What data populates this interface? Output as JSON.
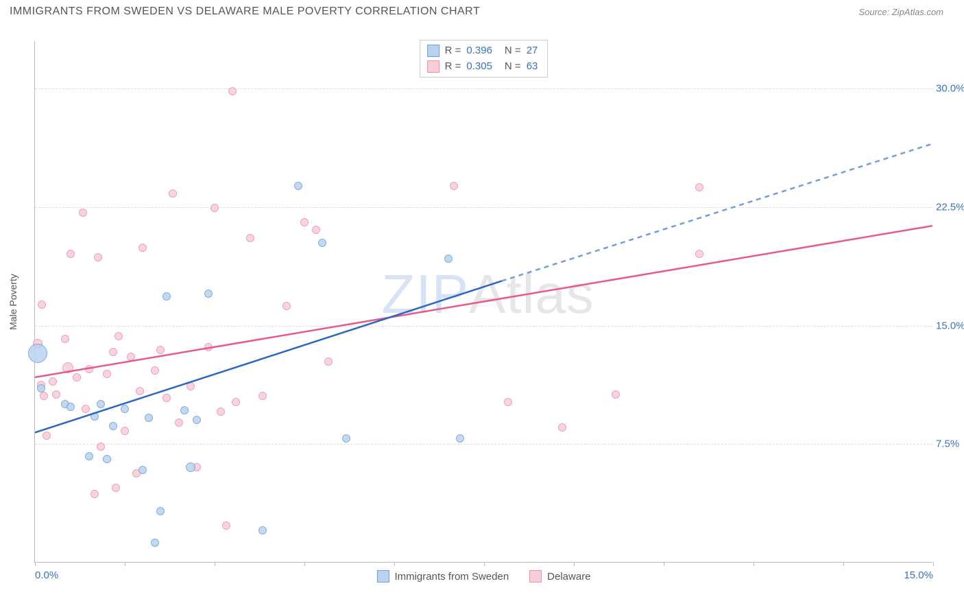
{
  "title": "IMMIGRANTS FROM SWEDEN VS DELAWARE MALE POVERTY CORRELATION CHART",
  "source": "Source: ZipAtlas.com",
  "watermark_part1": "ZIP",
  "watermark_part2": "Atlas",
  "chart": {
    "type": "scatter",
    "ylabel": "Male Poverty",
    "xlim": [
      0,
      15
    ],
    "ylim": [
      0,
      33
    ],
    "y_gridlines": [
      7.5,
      15.0,
      22.5,
      30.0
    ],
    "y_tick_labels": [
      "7.5%",
      "15.0%",
      "22.5%",
      "30.0%"
    ],
    "x_ticks": [
      0,
      1.5,
      3,
      4.5,
      6,
      7.5,
      9,
      10.5,
      12,
      13.5,
      15
    ],
    "x_tick_labels_shown": {
      "0": "0.0%",
      "15": "15.0%"
    },
    "background_color": "#ffffff",
    "grid_color": "#dddddd",
    "axis_color": "#bbbbbb",
    "tick_label_color": "#3b71c5",
    "series": [
      {
        "name": "Immigrants from Sweden",
        "fill": "#b9d2ef",
        "stroke": "#6f9edb",
        "line_color": "#2a67c4",
        "line_dash_color": "#6f9edb",
        "R": "0.396",
        "N": "27",
        "trend": {
          "x1": 0,
          "y1": 8.2,
          "x2_solid": 7.8,
          "y2_solid": 17.8,
          "x2_dash": 15,
          "y2_dash": 26.5
        },
        "points": [
          {
            "x": 0.05,
            "y": 13.2,
            "r": 14
          },
          {
            "x": 0.1,
            "y": 11.0,
            "r": 6
          },
          {
            "x": 0.5,
            "y": 10.0,
            "r": 6
          },
          {
            "x": 0.6,
            "y": 9.8,
            "r": 6
          },
          {
            "x": 0.9,
            "y": 6.7,
            "r": 6
          },
          {
            "x": 1.0,
            "y": 9.2,
            "r": 6
          },
          {
            "x": 1.1,
            "y": 10.0,
            "r": 6
          },
          {
            "x": 1.2,
            "y": 6.5,
            "r": 6
          },
          {
            "x": 1.3,
            "y": 8.6,
            "r": 6
          },
          {
            "x": 1.5,
            "y": 9.7,
            "r": 6
          },
          {
            "x": 1.8,
            "y": 5.8,
            "r": 6
          },
          {
            "x": 1.9,
            "y": 9.1,
            "r": 6
          },
          {
            "x": 2.0,
            "y": 1.2,
            "r": 6
          },
          {
            "x": 2.1,
            "y": 3.2,
            "r": 6
          },
          {
            "x": 2.2,
            "y": 16.8,
            "r": 6
          },
          {
            "x": 2.5,
            "y": 9.6,
            "r": 6
          },
          {
            "x": 2.6,
            "y": 6.0,
            "r": 7
          },
          {
            "x": 2.7,
            "y": 9.0,
            "r": 6
          },
          {
            "x": 2.9,
            "y": 17.0,
            "r": 6
          },
          {
            "x": 3.8,
            "y": 2.0,
            "r": 6
          },
          {
            "x": 4.4,
            "y": 23.8,
            "r": 6
          },
          {
            "x": 4.8,
            "y": 20.2,
            "r": 6
          },
          {
            "x": 5.2,
            "y": 7.8,
            "r": 6
          },
          {
            "x": 6.9,
            "y": 19.2,
            "r": 6
          },
          {
            "x": 7.1,
            "y": 7.8,
            "r": 6
          }
        ]
      },
      {
        "name": "Delaware",
        "fill": "#f8cdd8",
        "stroke": "#e794ab",
        "line_color": "#e75a87",
        "R": "0.305",
        "N": "63",
        "trend": {
          "x1": 0,
          "y1": 11.7,
          "x2_solid": 15,
          "y2_solid": 21.3
        },
        "points": [
          {
            "x": 0.05,
            "y": 13.8,
            "r": 7
          },
          {
            "x": 0.1,
            "y": 11.2,
            "r": 6
          },
          {
            "x": 0.15,
            "y": 10.5,
            "r": 6
          },
          {
            "x": 0.12,
            "y": 16.3,
            "r": 6
          },
          {
            "x": 0.2,
            "y": 8.0,
            "r": 6
          },
          {
            "x": 0.3,
            "y": 11.4,
            "r": 6
          },
          {
            "x": 0.35,
            "y": 10.6,
            "r": 6
          },
          {
            "x": 0.5,
            "y": 14.1,
            "r": 6
          },
          {
            "x": 0.55,
            "y": 12.3,
            "r": 8
          },
          {
            "x": 0.6,
            "y": 19.5,
            "r": 6
          },
          {
            "x": 0.7,
            "y": 11.7,
            "r": 6
          },
          {
            "x": 0.8,
            "y": 22.1,
            "r": 6
          },
          {
            "x": 0.85,
            "y": 9.7,
            "r": 6
          },
          {
            "x": 0.9,
            "y": 12.2,
            "r": 6
          },
          {
            "x": 1.0,
            "y": 4.3,
            "r": 6
          },
          {
            "x": 1.05,
            "y": 19.3,
            "r": 6
          },
          {
            "x": 1.1,
            "y": 7.3,
            "r": 6
          },
          {
            "x": 1.2,
            "y": 11.9,
            "r": 6
          },
          {
            "x": 1.3,
            "y": 13.3,
            "r": 6
          },
          {
            "x": 1.35,
            "y": 4.7,
            "r": 6
          },
          {
            "x": 1.4,
            "y": 14.3,
            "r": 6
          },
          {
            "x": 1.5,
            "y": 8.3,
            "r": 6
          },
          {
            "x": 1.6,
            "y": 13.0,
            "r": 6
          },
          {
            "x": 1.7,
            "y": 5.6,
            "r": 6
          },
          {
            "x": 1.75,
            "y": 10.8,
            "r": 6
          },
          {
            "x": 1.8,
            "y": 19.9,
            "r": 6
          },
          {
            "x": 2.0,
            "y": 12.1,
            "r": 6
          },
          {
            "x": 2.1,
            "y": 13.4,
            "r": 6
          },
          {
            "x": 2.2,
            "y": 10.4,
            "r": 6
          },
          {
            "x": 2.3,
            "y": 23.3,
            "r": 6
          },
          {
            "x": 2.4,
            "y": 8.8,
            "r": 6
          },
          {
            "x": 2.6,
            "y": 11.1,
            "r": 6
          },
          {
            "x": 2.7,
            "y": 6.0,
            "r": 6
          },
          {
            "x": 2.9,
            "y": 13.6,
            "r": 6
          },
          {
            "x": 3.0,
            "y": 22.4,
            "r": 6
          },
          {
            "x": 3.1,
            "y": 9.5,
            "r": 6
          },
          {
            "x": 3.2,
            "y": 2.3,
            "r": 6
          },
          {
            "x": 3.3,
            "y": 29.8,
            "r": 6
          },
          {
            "x": 3.35,
            "y": 10.1,
            "r": 6
          },
          {
            "x": 3.6,
            "y": 20.5,
            "r": 6
          },
          {
            "x": 3.8,
            "y": 10.5,
            "r": 6
          },
          {
            "x": 4.2,
            "y": 16.2,
            "r": 6
          },
          {
            "x": 4.5,
            "y": 21.5,
            "r": 6
          },
          {
            "x": 4.7,
            "y": 21.0,
            "r": 6
          },
          {
            "x": 4.9,
            "y": 12.7,
            "r": 6
          },
          {
            "x": 7.0,
            "y": 23.8,
            "r": 6
          },
          {
            "x": 7.9,
            "y": 10.1,
            "r": 6
          },
          {
            "x": 8.8,
            "y": 8.5,
            "r": 6
          },
          {
            "x": 9.7,
            "y": 10.6,
            "r": 6
          },
          {
            "x": 11.1,
            "y": 23.7,
            "r": 6
          },
          {
            "x": 11.1,
            "y": 19.5,
            "r": 6
          }
        ]
      }
    ]
  }
}
